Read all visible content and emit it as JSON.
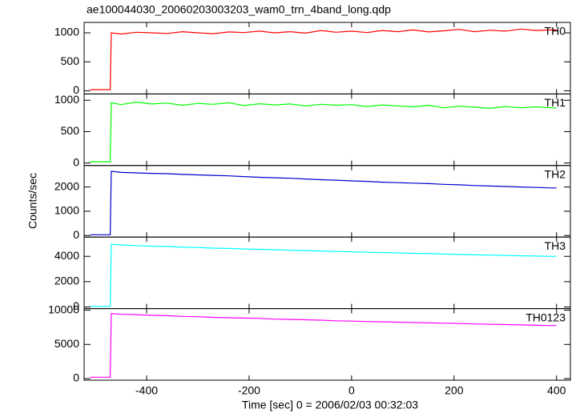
{
  "figure": {
    "title": "ae100044030_20060203003203_wam0_trn_4band_long.qdp",
    "x_label": "Time [sec] 0 = 2006/02/03 00:32:03",
    "y_label": "Counts/sec",
    "xlim": [
      -522,
      427
    ],
    "xticks": [
      -400,
      -200,
      0,
      200,
      400
    ]
  },
  "chart_data": [
    {
      "type": "line",
      "name": "TH0",
      "color": "#ff0000",
      "ylim": [
        -55,
        1180
      ],
      "yticks": [
        0,
        500,
        1000
      ],
      "x": [
        -510,
        -490,
        -471,
        -469,
        -450,
        -420,
        -390,
        -360,
        -330,
        -300,
        -270,
        -240,
        -210,
        -180,
        -150,
        -120,
        -90,
        -60,
        -30,
        0,
        30,
        60,
        90,
        120,
        150,
        180,
        210,
        240,
        270,
        300,
        330,
        360,
        390,
        400
      ],
      "values": [
        20,
        20,
        20,
        1000,
        980,
        1010,
        1000,
        990,
        1020,
        1000,
        985,
        1015,
        1005,
        1030,
        1000,
        1020,
        995,
        1040,
        1010,
        1030,
        1005,
        1040,
        1020,
        1050,
        1015,
        1035,
        1060,
        1020,
        1045,
        1030,
        1065,
        1040,
        1050,
        1050
      ]
    },
    {
      "type": "line",
      "name": "TH1",
      "color": "#00ff00",
      "ylim": [
        -40,
        1100
      ],
      "yticks": [
        0,
        500,
        1000
      ],
      "x": [
        -510,
        -490,
        -471,
        -469,
        -450,
        -420,
        -390,
        -360,
        -330,
        -300,
        -270,
        -240,
        -210,
        -180,
        -150,
        -120,
        -90,
        -60,
        -30,
        0,
        30,
        60,
        90,
        120,
        150,
        180,
        210,
        240,
        270,
        300,
        330,
        360,
        390,
        400
      ],
      "values": [
        20,
        20,
        20,
        960,
        930,
        970,
        940,
        955,
        920,
        950,
        935,
        960,
        915,
        945,
        925,
        940,
        910,
        935,
        920,
        930,
        900,
        925,
        910,
        895,
        920,
        880,
        905,
        890,
        870,
        900,
        880,
        895,
        880,
        880
      ]
    },
    {
      "type": "line",
      "name": "TH2",
      "color": "#0000d0",
      "ylim": [
        -65,
        2885
      ],
      "yticks": [
        0,
        1000,
        2000
      ],
      "x": [
        -510,
        -490,
        -471,
        -469,
        -450,
        -420,
        -390,
        -360,
        -330,
        -300,
        -270,
        -240,
        -210,
        -180,
        -150,
        -120,
        -90,
        -60,
        -30,
        0,
        30,
        60,
        90,
        120,
        150,
        180,
        210,
        240,
        270,
        300,
        330,
        360,
        390,
        400
      ],
      "values": [
        30,
        30,
        30,
        2650,
        2600,
        2580,
        2560,
        2550,
        2520,
        2500,
        2480,
        2460,
        2430,
        2400,
        2380,
        2360,
        2330,
        2300,
        2280,
        2250,
        2230,
        2200,
        2180,
        2160,
        2140,
        2110,
        2090,
        2060,
        2040,
        2020,
        2000,
        1980,
        1960,
        1960
      ]
    },
    {
      "type": "line",
      "name": "TH3",
      "color": "#00ffff",
      "ylim": [
        -130,
        5520
      ],
      "yticks": [
        0,
        2000,
        4000
      ],
      "x": [
        -510,
        -490,
        -471,
        -469,
        -450,
        -420,
        -390,
        -360,
        -330,
        -300,
        -270,
        -240,
        -210,
        -180,
        -150,
        -120,
        -90,
        -60,
        -30,
        0,
        30,
        60,
        90,
        120,
        150,
        180,
        210,
        240,
        270,
        300,
        330,
        360,
        390,
        400
      ],
      "values": [
        50,
        50,
        50,
        4950,
        4900,
        4850,
        4800,
        4780,
        4720,
        4700,
        4650,
        4620,
        4580,
        4550,
        4520,
        4480,
        4450,
        4420,
        4380,
        4360,
        4320,
        4300,
        4270,
        4240,
        4210,
        4180,
        4150,
        4120,
        4100,
        4070,
        4040,
        4020,
        4000,
        4000
      ]
    },
    {
      "type": "line",
      "name": "TH0123",
      "color": "#ff00ff",
      "ylim": [
        -230,
        10230
      ],
      "yticks": [
        0,
        5000,
        10000
      ],
      "x": [
        -510,
        -490,
        -471,
        -469,
        -450,
        -420,
        -390,
        -360,
        -330,
        -300,
        -270,
        -240,
        -210,
        -180,
        -150,
        -120,
        -90,
        -60,
        -30,
        0,
        30,
        60,
        90,
        120,
        150,
        180,
        210,
        240,
        270,
        300,
        330,
        360,
        390,
        400
      ],
      "values": [
        200,
        200,
        200,
        9500,
        9400,
        9350,
        9250,
        9200,
        9100,
        9050,
        8950,
        8900,
        8850,
        8800,
        8700,
        8650,
        8600,
        8550,
        8450,
        8400,
        8350,
        8300,
        8250,
        8200,
        8150,
        8100,
        8050,
        8000,
        7950,
        7900,
        7850,
        7800,
        7750,
        7750
      ]
    }
  ]
}
